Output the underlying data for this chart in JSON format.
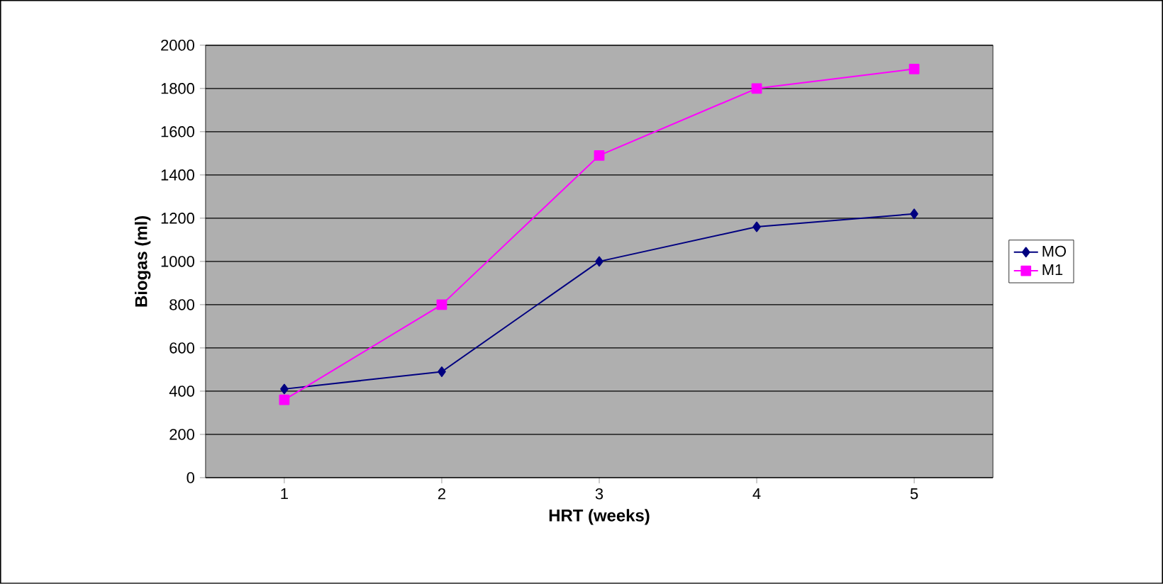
{
  "chart_data": {
    "type": "line",
    "xlabel": "HRT (weeks)",
    "ylabel": "Biogas (ml)",
    "categories": [
      "1",
      "2",
      "3",
      "4",
      "5"
    ],
    "series": [
      {
        "name": "MO",
        "color": "#000080",
        "marker": "diamond",
        "values": [
          410,
          490,
          1000,
          1160,
          1220
        ]
      },
      {
        "name": "M1",
        "color": "#ff00ff",
        "marker": "square",
        "values": [
          360,
          800,
          1490,
          1800,
          1890
        ]
      }
    ],
    "ylim": [
      0,
      2000
    ],
    "yticks": [
      0,
      200,
      400,
      600,
      800,
      1000,
      1200,
      1400,
      1600,
      1800,
      2000
    ],
    "grid": "y",
    "legend": "right",
    "line_style": "solid"
  }
}
